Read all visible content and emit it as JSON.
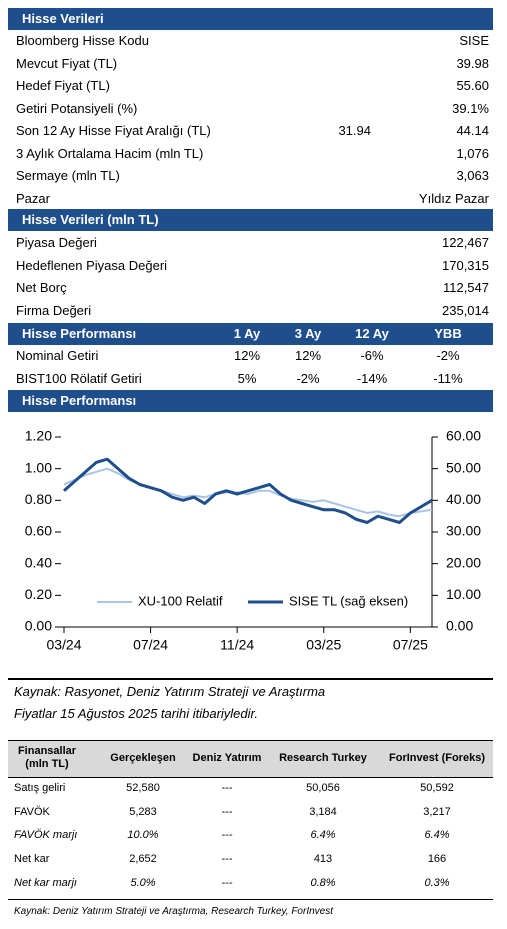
{
  "stock_data": {
    "title": "Hisse Verileri",
    "rows": [
      [
        "Bloomberg Hisse Kodu",
        "SISE"
      ],
      [
        "Mevcut Fiyat (TL)",
        "39.98"
      ],
      [
        "Hedef Fiyat (TL)",
        "55.60"
      ],
      [
        "Getiri Potansiyeli (%)",
        "39.1%"
      ],
      [
        "Son 12 Ay Hisse Fiyat Aralığı (TL)",
        "31.94",
        "44.14"
      ],
      [
        "3 Aylık Ortalama Hacim (mln TL)",
        "1,076"
      ],
      [
        "Sermaye (mln TL)",
        "3,063"
      ],
      [
        "Pazar",
        "Yıldız Pazar"
      ]
    ]
  },
  "market_data": {
    "title": "Hisse Verileri (mln TL)",
    "rows": [
      [
        "Piyasa Değeri",
        "122,467"
      ],
      [
        "Hedeflenen Piyasa Değeri",
        "170,315"
      ],
      [
        "Net Borç",
        "112,547"
      ],
      [
        "Firma Değeri",
        "235,014"
      ]
    ]
  },
  "performance": {
    "title": "Hisse Performansı",
    "columns": [
      "1 Ay",
      "3 Ay",
      "12 Ay",
      "YBB"
    ],
    "rows": [
      [
        "Nominal Getiri",
        "12%",
        "12%",
        "-6%",
        "-2%"
      ],
      [
        "BIST100 Rölatif Getiri",
        "5%",
        "-2%",
        "-14%",
        "-11%"
      ]
    ]
  },
  "chart_title": "Hisse Performansı",
  "chart_data": {
    "type": "line",
    "categories": [
      "03/24",
      null,
      null,
      null,
      null,
      null,
      null,
      null,
      "07/24",
      null,
      null,
      null,
      null,
      null,
      null,
      null,
      "11/24",
      null,
      null,
      null,
      null,
      null,
      null,
      null,
      "03/25",
      null,
      null,
      null,
      null,
      null,
      null,
      null,
      "07/25",
      null,
      null
    ],
    "series": [
      {
        "name": "XU-100 Relatif",
        "color": "#a9c4e6",
        "values": [
          0.9,
          0.93,
          0.96,
          0.98,
          1.0,
          0.97,
          0.93,
          0.9,
          0.88,
          0.86,
          0.84,
          0.82,
          0.83,
          0.82,
          0.84,
          0.85,
          0.85,
          0.84,
          0.86,
          0.86,
          0.83,
          0.81,
          0.8,
          0.79,
          0.8,
          0.78,
          0.76,
          0.74,
          0.72,
          0.73,
          0.71,
          0.7,
          0.72,
          0.73,
          0.74
        ]
      },
      {
        "name": "SISE TL (sağ eksen)",
        "color": "#1f4e8c",
        "axis": "y2",
        "values": [
          43,
          46,
          49,
          52,
          53,
          50,
          47,
          45,
          44,
          43,
          41,
          40,
          41,
          39,
          42,
          43,
          42,
          43,
          44,
          45,
          42,
          40,
          39,
          38,
          37,
          37,
          36,
          34,
          33,
          35,
          34,
          33,
          36,
          38,
          40
        ]
      }
    ],
    "ylim": [
      0,
      1.2
    ],
    "yticks": [
      {
        "value": 0,
        "label": "0.00"
      },
      {
        "value": 0.2,
        "label": "0.20"
      },
      {
        "value": 0.4,
        "label": "0.40"
      },
      {
        "value": 0.6,
        "label": "0.60"
      },
      {
        "value": 0.8,
        "label": "0.80"
      },
      {
        "value": 1.0,
        "label": "1.00"
      },
      {
        "value": 1.2,
        "label": "1.20"
      }
    ],
    "y2lim": [
      0,
      60
    ],
    "y2ticks": [
      {
        "value": 0,
        "label": "0.00"
      },
      {
        "value": 10,
        "label": "10.00"
      },
      {
        "value": 20,
        "label": "20.00"
      },
      {
        "value": 30,
        "label": "30.00"
      },
      {
        "value": 40,
        "label": "40.00"
      },
      {
        "value": 50,
        "label": "50.00"
      },
      {
        "value": 60,
        "label": "60.00"
      }
    ],
    "grid": false,
    "legend": "bottom"
  },
  "sources": [
    "Kaynak: Rasyonet, Deniz Yatırım Strateji ve Araştırma",
    "Fiyatlar 15 Ağustos 2025 tarihi itibariyledir."
  ],
  "financials": {
    "columns": [
      "Finansallar (mln TL)",
      "Gerçekleşen",
      "Deniz Yatırım",
      "Research Turkey",
      "ForInvest (Foreks)"
    ],
    "rows": [
      [
        "Satış geliri",
        "52,580",
        "---",
        "50,056",
        "50,592"
      ],
      [
        "FAVÖK",
        "5,283",
        "---",
        "3,184",
        "3,217"
      ],
      [
        "FAVÖK marjı",
        "10.0%",
        "---",
        "6.4%",
        "6.4%"
      ],
      [
        "Net kar",
        "2,652",
        "---",
        "413",
        "166"
      ],
      [
        "Net kar marjı",
        "5.0%",
        "---",
        "0.8%",
        "0.3%"
      ]
    ]
  },
  "footnote": "Kaynak: Deniz Yatırım Strateji ve Araştırma, Research Turkey, ForInvest"
}
